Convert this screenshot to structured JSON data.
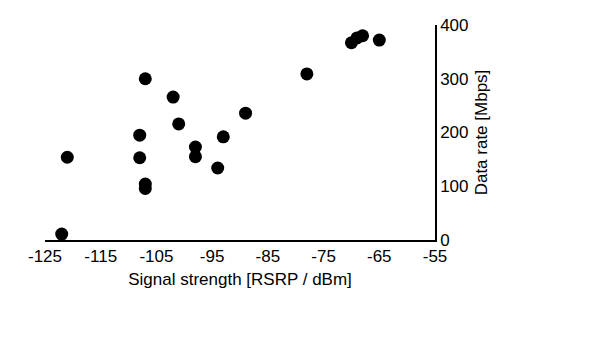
{
  "chart_data": {
    "type": "scatter",
    "x_label": "Signal strength [RSRP / dBm]",
    "y_label": "Data rate [Mbps]",
    "x": [
      -122,
      -121,
      -107,
      -107,
      -107,
      -108,
      -108,
      -101,
      -102,
      -98,
      -98,
      -93,
      -94,
      -89,
      -78,
      -70,
      -69,
      -68,
      -65
    ],
    "values": [
      11,
      154,
      300,
      104,
      96,
      153,
      195,
      216,
      266,
      173,
      155,
      192,
      134,
      236,
      309,
      367,
      376,
      380,
      372
    ],
    "color": "#000000",
    "marker": "circle",
    "xlim": [
      -125,
      -55
    ],
    "xticks": [
      -125,
      -115,
      -105,
      -95,
      -85,
      -75,
      -65,
      -55
    ],
    "ylim": [
      0,
      400
    ],
    "yticks": [
      0,
      100,
      200,
      300,
      400
    ],
    "grid": false
  }
}
